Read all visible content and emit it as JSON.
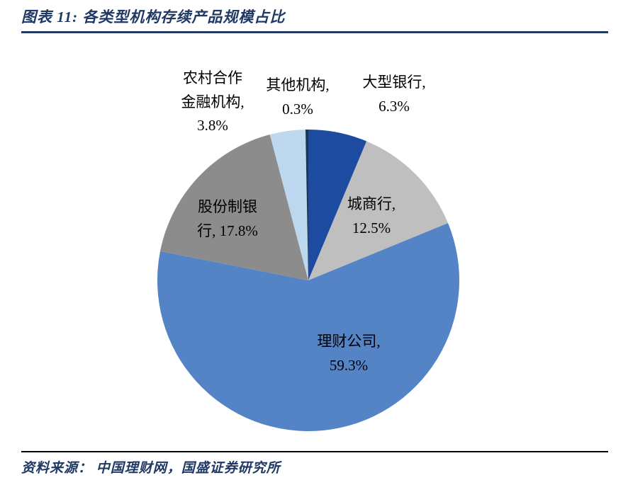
{
  "header": {
    "title": "图表 11:  各类型机构存续产品规模占比"
  },
  "footer": {
    "source": "资料来源： 中国理财网，国盛证券研究所"
  },
  "chart_data": {
    "type": "pie",
    "title": "各类型机构存续产品规模占比",
    "unit": "%",
    "legend": "none",
    "start_angle_deg": 0,
    "direction": "clockwise",
    "labels_position": "outside-top-and-on-slice",
    "slices": [
      {
        "label": "大型银行",
        "value": 6.3,
        "color": "#1C4BA0",
        "display": "大型银行,\n6.3%"
      },
      {
        "label": "城商行",
        "value": 12.5,
        "color": "#BFBFBF",
        "display": "城商行,\n12.5%"
      },
      {
        "label": "理财公司",
        "value": 59.3,
        "color": "#5483C6",
        "display": "理财公司,\n59.3%"
      },
      {
        "label": "股份制银行",
        "value": 17.8,
        "color": "#8C8C8C",
        "display": "股份制银\n行, 17.8%"
      },
      {
        "label": "农村合作金融机构",
        "value": 3.8,
        "color": "#BDD7EE",
        "display": "农村合作\n金融机构,\n3.8%"
      },
      {
        "label": "其他机构",
        "value": 0.3,
        "color": "#17375E",
        "display": "其他机构,\n0.3%"
      }
    ]
  }
}
